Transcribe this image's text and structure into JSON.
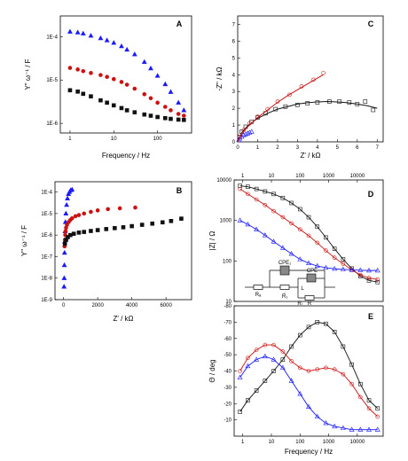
{
  "colors": {
    "blue": "#1a1aff",
    "red": "#cc1111",
    "black": "#111111"
  },
  "chart_data": [
    {
      "panel": "A",
      "type": "scatter",
      "xlabel": "Frequency / Hz",
      "ylabel": "Y\" ω⁻¹ / F",
      "xscale": "log",
      "yscale": "log",
      "xlim": [
        0.6,
        600
      ],
      "ylim": [
        6e-07,
        0.0003
      ],
      "xticks": [
        {
          "v": 1,
          "label": "1"
        },
        {
          "v": 10,
          "label": "10"
        },
        {
          "v": 100,
          "label": "100"
        }
      ],
      "yticks": [
        {
          "v": 1e-06,
          "label": "1E-6"
        },
        {
          "v": 1e-05,
          "label": "1E-5"
        },
        {
          "v": 0.0001,
          "label": "1E-4"
        }
      ],
      "series": [
        {
          "color": "blue",
          "marker": "triangle",
          "x": [
            1,
            1.5,
            2,
            3,
            5,
            7,
            10,
            15,
            20,
            30,
            50,
            70,
            100,
            150,
            200,
            300,
            400
          ],
          "y": [
            0.00013,
            0.000125,
            0.000118,
            0.000105,
            9.2e-05,
            8.2e-05,
            7.2e-05,
            6e-05,
            5e-05,
            3.9e-05,
            2.6e-05,
            1.85e-05,
            1.25e-05,
            8e-06,
            5.3e-06,
            3e-06,
            2e-06
          ]
        },
        {
          "color": "red",
          "marker": "circle",
          "x": [
            1,
            1.5,
            2,
            3,
            5,
            7,
            10,
            15,
            20,
            30,
            50,
            70,
            100,
            150,
            200,
            300,
            400
          ],
          "y": [
            1.9e-05,
            1.75e-05,
            1.6e-05,
            1.45e-05,
            1.3e-05,
            1.18e-05,
            1.05e-05,
            9e-06,
            7.8e-06,
            6.3e-06,
            4.7e-06,
            3.8e-06,
            3e-06,
            2.4e-06,
            2e-06,
            1.65e-06,
            1.5e-06
          ]
        },
        {
          "color": "black",
          "marker": "square",
          "x": [
            1,
            1.5,
            2,
            3,
            5,
            7,
            10,
            15,
            20,
            30,
            50,
            70,
            100,
            150,
            200,
            300,
            400
          ],
          "y": [
            5.8e-06,
            5.4e-06,
            4.8e-06,
            4.2e-06,
            3.4e-06,
            3e-06,
            2.6e-06,
            2.25e-06,
            2e-06,
            1.8e-06,
            1.6e-06,
            1.5e-06,
            1.4e-06,
            1.32e-06,
            1.27e-06,
            1.22e-06,
            1.2e-06
          ]
        }
      ]
    },
    {
      "panel": "B",
      "type": "scatter",
      "xlabel": "Z' / kΩ",
      "ylabel": "Y\" ω⁻¹ / F",
      "yscale": "log",
      "xlim": [
        -500,
        7500
      ],
      "ylim": [
        1e-09,
        0.0003
      ],
      "xticks": [
        {
          "v": 0,
          "label": "0"
        },
        {
          "v": 2000,
          "label": "2000"
        },
        {
          "v": 4000,
          "label": "4000"
        },
        {
          "v": 6000,
          "label": "6000"
        }
      ],
      "yticks": [
        {
          "v": 1e-09,
          "label": "1E-9"
        },
        {
          "v": 1e-08,
          "label": "1E-8"
        },
        {
          "v": 1e-07,
          "label": "1E-7"
        },
        {
          "v": 1e-06,
          "label": "1E-6"
        },
        {
          "v": 1e-05,
          "label": "1E-5"
        },
        {
          "v": 0.0001,
          "label": "1E-4"
        }
      ],
      "series": [
        {
          "color": "blue",
          "marker": "triangle",
          "x": [
            30,
            40,
            50,
            60,
            70,
            90,
            110,
            140,
            180,
            230,
            290,
            350,
            420,
            500
          ],
          "y": [
            4e-09,
            1e-08,
            4e-08,
            1.5e-07,
            5e-07,
            1.5e-06,
            4e-06,
            1e-05,
            2.5e-05,
            5e-05,
            8e-05,
            0.0001,
            0.00012,
            0.00013
          ]
        },
        {
          "color": "red",
          "marker": "circle",
          "x": [
            60,
            80,
            100,
            120,
            150,
            200,
            300,
            400,
            500,
            700,
            900,
            1200,
            1600,
            2000,
            2600,
            3300,
            4200
          ],
          "y": [
            3e-07,
            6e-07,
            1e-06,
            1.5e-06,
            2.2e-06,
            3e-06,
            4e-06,
            5e-06,
            6e-06,
            7.5e-06,
            8.5e-06,
            1e-05,
            1.2e-05,
            1.4e-05,
            1.6e-05,
            1.75e-05,
            1.9e-05
          ]
        },
        {
          "color": "black",
          "marker": "square",
          "x": [
            80,
            150,
            250,
            400,
            600,
            900,
            1200,
            1600,
            2000,
            2500,
            3000,
            3500,
            4000,
            4600,
            5200,
            5800,
            6300,
            6900
          ],
          "y": [
            4e-07,
            6e-07,
            8e-07,
            1e-06,
            1.15e-06,
            1.3e-06,
            1.4e-06,
            1.55e-06,
            1.7e-06,
            1.9e-06,
            2.1e-06,
            2.3e-06,
            2.6e-06,
            3e-06,
            3.4e-06,
            3.9e-06,
            4.5e-06,
            5.8e-06
          ]
        }
      ]
    },
    {
      "panel": "C",
      "type": "scatter",
      "xlabel": "Z' / kΩ",
      "ylabel": "-Z\" / kΩ",
      "xlim": [
        0,
        7.3
      ],
      "ylim": [
        0,
        7.5
      ],
      "xticks": [
        {
          "v": 0,
          "label": "0"
        },
        {
          "v": 1,
          "label": "1"
        },
        {
          "v": 2,
          "label": "2"
        },
        {
          "v": 3,
          "label": "3"
        },
        {
          "v": 4,
          "label": "4"
        },
        {
          "v": 5,
          "label": "5"
        },
        {
          "v": 6,
          "label": "6"
        },
        {
          "v": 7,
          "label": "7"
        }
      ],
      "yticks": [
        {
          "v": 0,
          "label": "0"
        },
        {
          "v": 1,
          "label": "1"
        },
        {
          "v": 2,
          "label": "2"
        },
        {
          "v": 3,
          "label": "3"
        },
        {
          "v": 4,
          "label": "4"
        },
        {
          "v": 5,
          "label": "5"
        },
        {
          "v": 6,
          "label": "6"
        },
        {
          "v": 7,
          "label": "7"
        }
      ],
      "series": [
        {
          "color": "black",
          "marker": "open-square",
          "x": [
            0.1,
            0.2,
            0.4,
            0.7,
            1.0,
            1.4,
            1.9,
            2.4,
            3.0,
            3.5,
            4.0,
            4.6,
            5.1,
            5.6,
            6.0,
            6.4,
            6.8
          ],
          "y": [
            0.3,
            0.6,
            0.9,
            1.2,
            1.45,
            1.7,
            1.95,
            2.1,
            2.2,
            2.3,
            2.35,
            2.4,
            2.4,
            2.35,
            2.25,
            2.4,
            1.9
          ]
        },
        {
          "color": "red",
          "marker": "open-circle",
          "x": [
            0.1,
            0.3,
            0.6,
            1.0,
            1.5,
            2.0,
            2.6,
            3.2,
            3.8,
            4.3
          ],
          "y": [
            0.3,
            0.7,
            1.1,
            1.5,
            1.95,
            2.4,
            2.8,
            3.3,
            3.7,
            4.1
          ]
        },
        {
          "color": "blue",
          "marker": "open-triangle",
          "x": [
            0.05,
            0.1,
            0.2,
            0.3,
            0.4,
            0.5,
            0.6,
            0.7
          ],
          "y": [
            0.1,
            0.2,
            0.3,
            0.4,
            0.45,
            0.5,
            0.55,
            0.6
          ]
        },
        {
          "color": "black",
          "marker": "line",
          "x": [
            0,
            0.2,
            0.5,
            1,
            1.5,
            2,
            2.5,
            3,
            3.5,
            4,
            4.5,
            5,
            5.5,
            6,
            6.5,
            7
          ],
          "y": [
            0,
            0.55,
            0.95,
            1.4,
            1.7,
            1.95,
            2.1,
            2.25,
            2.33,
            2.38,
            2.4,
            2.38,
            2.33,
            2.25,
            2.15,
            2.0
          ]
        },
        {
          "color": "red",
          "marker": "line",
          "x": [
            0,
            0.2,
            0.5,
            1,
            1.5,
            2,
            2.5,
            3,
            3.5,
            4,
            4.3
          ],
          "y": [
            0,
            0.5,
            0.9,
            1.45,
            1.9,
            2.35,
            2.75,
            3.1,
            3.45,
            3.8,
            4.0
          ]
        }
      ]
    },
    {
      "panel": "D",
      "type": "scatter",
      "xlabel": "",
      "ylabel": "|Z| / Ω",
      "xscale": "log",
      "yscale": "log",
      "xlim": [
        0.5,
        80000
      ],
      "ylim": [
        10,
        10000
      ],
      "xticks_top": [
        {
          "v": 1,
          "label": "1"
        },
        {
          "v": 10,
          "label": "10"
        },
        {
          "v": 100,
          "label": "100"
        },
        {
          "v": 1000,
          "label": "1000"
        },
        {
          "v": 10000,
          "label": "10000"
        }
      ],
      "yticks": [
        {
          "v": 10,
          "label": "10"
        },
        {
          "v": 100,
          "label": "100"
        },
        {
          "v": 1000,
          "label": "1000"
        },
        {
          "v": 10000,
          "label": "10000"
        }
      ],
      "series": [
        {
          "color": "black",
          "marker": "open-square",
          "x": [
            0.8,
            1.5,
            3,
            6,
            12,
            25,
            50,
            100,
            200,
            400,
            800,
            1600,
            3200,
            6400,
            12800,
            25600,
            51200
          ],
          "y": [
            7200,
            6800,
            6000,
            5200,
            4500,
            3600,
            2700,
            1900,
            1200,
            700,
            380,
            200,
            110,
            65,
            42,
            33,
            30
          ]
        },
        {
          "color": "red",
          "marker": "open-circle",
          "x": [
            0.8,
            1.5,
            3,
            6,
            12,
            25,
            50,
            100,
            200,
            400,
            800,
            1600,
            3200,
            6400,
            12800,
            25600,
            51200
          ],
          "y": [
            6000,
            4500,
            3300,
            2400,
            1700,
            1200,
            850,
            600,
            420,
            280,
            180,
            120,
            85,
            60,
            45,
            38,
            35
          ]
        },
        {
          "color": "blue",
          "marker": "open-triangle",
          "x": [
            0.8,
            1.5,
            3,
            6,
            12,
            25,
            50,
            100,
            200,
            400,
            800,
            1600,
            3200,
            6400,
            12800,
            25600,
            51200
          ],
          "y": [
            1000,
            800,
            600,
            430,
            300,
            210,
            150,
            110,
            88,
            75,
            68,
            64,
            62,
            60,
            59,
            58,
            58
          ]
        }
      ],
      "annotations": [
        "CPE₁",
        "CPE",
        "ₗ",
        "L",
        "Rₗ",
        "R₁",
        "R",
        "Rₐ"
      ]
    },
    {
      "panel": "E",
      "type": "scatter",
      "xlabel": "Frequency / Hz",
      "ylabel": "Θ / deg",
      "xscale": "log",
      "xlim": [
        0.5,
        80000
      ],
      "ylim": [
        0,
        -80
      ],
      "xticks": [
        {
          "v": 1,
          "label": "1"
        },
        {
          "v": 10,
          "label": "10"
        },
        {
          "v": 100,
          "label": "100"
        },
        {
          "v": 1000,
          "label": "1000"
        },
        {
          "v": 10000,
          "label": "10000"
        }
      ],
      "yticks": [
        {
          "v": -10,
          "label": "-10"
        },
        {
          "v": -20,
          "label": "-20"
        },
        {
          "v": -30,
          "label": "-30"
        },
        {
          "v": -40,
          "label": "-40"
        },
        {
          "v": -50,
          "label": "-50"
        },
        {
          "v": -60,
          "label": "-60"
        },
        {
          "v": -70,
          "label": "-70"
        },
        {
          "v": -80,
          "label": "-80"
        }
      ],
      "series": [
        {
          "color": "black",
          "marker": "open-square",
          "x": [
            0.8,
            1.5,
            3,
            6,
            12,
            25,
            50,
            100,
            200,
            400,
            800,
            1600,
            3200,
            6400,
            12800,
            25600,
            51200
          ],
          "y": [
            -15,
            -22,
            -28,
            -34,
            -40,
            -47,
            -55,
            -62,
            -67,
            -70,
            -69,
            -64,
            -55,
            -44,
            -32,
            -22,
            -17
          ]
        },
        {
          "color": "red",
          "marker": "open-circle",
          "x": [
            0.8,
            1.5,
            3,
            6,
            12,
            25,
            50,
            100,
            200,
            400,
            800,
            1600,
            3200,
            6400,
            12800,
            25600,
            51200
          ],
          "y": [
            -40,
            -48,
            -53,
            -56,
            -56,
            -52,
            -46,
            -42,
            -40,
            -41,
            -42,
            -41,
            -38,
            -32,
            -24,
            -17,
            -12
          ]
        },
        {
          "color": "blue",
          "marker": "open-triangle",
          "x": [
            0.8,
            1.5,
            3,
            6,
            12,
            25,
            50,
            100,
            200,
            400,
            800,
            1600,
            3200,
            6400,
            12800,
            25600,
            51200
          ],
          "y": [
            -36,
            -43,
            -47,
            -49,
            -47,
            -42,
            -34,
            -26,
            -18,
            -12,
            -8,
            -6,
            -5,
            -4,
            -4,
            -4,
            -4
          ]
        }
      ]
    }
  ]
}
